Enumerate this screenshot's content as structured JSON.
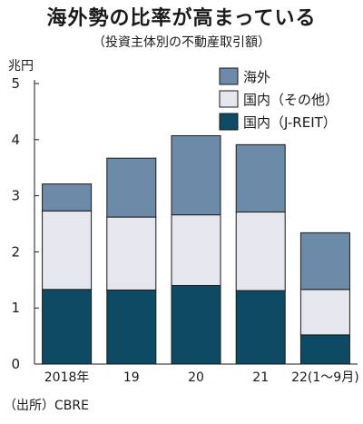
{
  "chart_data": {
    "type": "bar",
    "stacked": true,
    "title": "海外勢の比率が高まっている",
    "subtitle": "（投資主体別の不動産取引額）",
    "unit": "兆円",
    "source": "（出所）CBRE",
    "categories": [
      "2018年",
      "19",
      "20",
      "21",
      "22(1〜9月)"
    ],
    "series": [
      {
        "name": "国内（J-REIT）",
        "color": "#0d4a63",
        "values": [
          1.33,
          1.32,
          1.4,
          1.31,
          0.52
        ]
      },
      {
        "name": "国内（その他）",
        "color": "#e6e6ee",
        "values": [
          1.4,
          1.3,
          1.26,
          1.4,
          0.81
        ]
      },
      {
        "name": "海外",
        "color": "#6b8ba8",
        "values": [
          0.48,
          1.05,
          1.41,
          1.2,
          1.01
        ]
      }
    ],
    "ylim": [
      0,
      5
    ],
    "yticks": [
      "0",
      "1",
      "2",
      "3",
      "4",
      "5"
    ],
    "legend_position": "top-right",
    "grid": false
  }
}
